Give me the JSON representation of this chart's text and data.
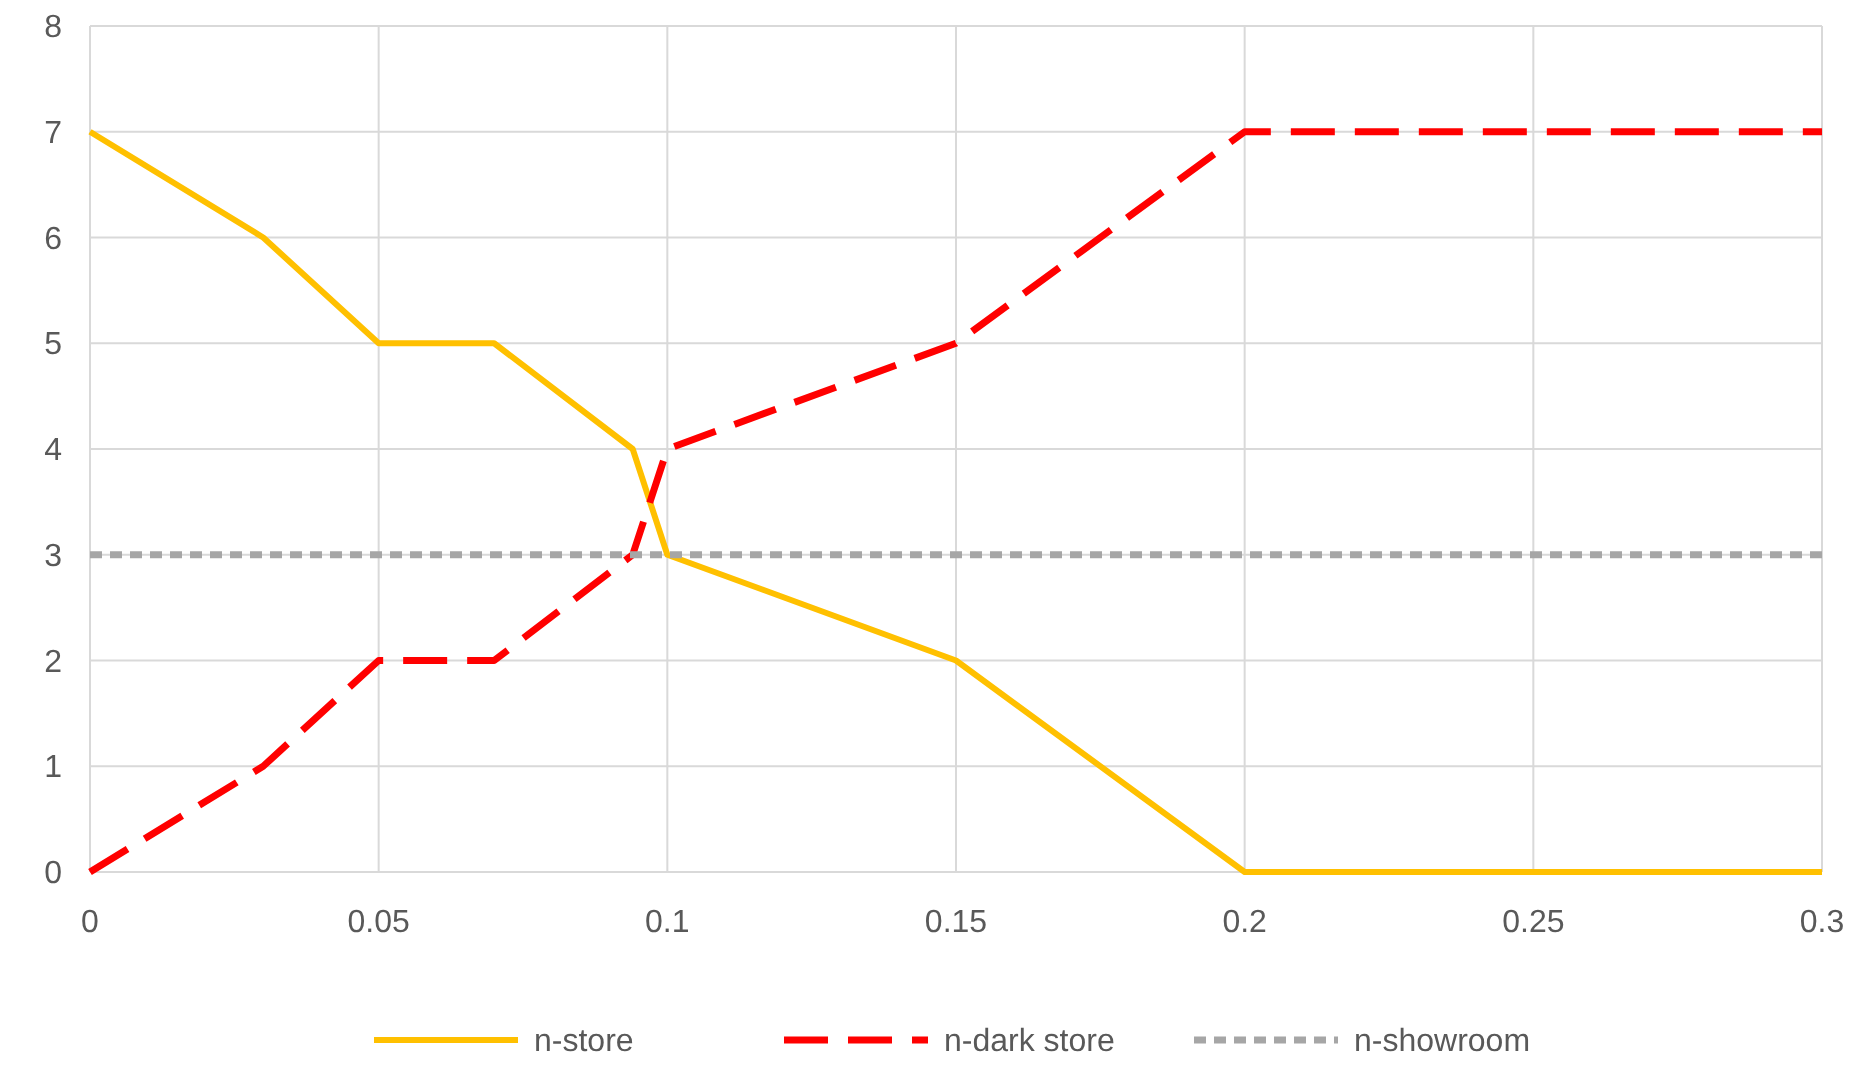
{
  "chart_data": {
    "type": "line",
    "x": [
      0,
      0.03,
      0.05,
      0.07,
      0.094,
      0.1,
      0.15,
      0.2,
      0.3
    ],
    "series": [
      {
        "name": "n-store",
        "color": "#ffc000",
        "line_style": "solid",
        "values": [
          7,
          6,
          5,
          5,
          4,
          3,
          2,
          0,
          0
        ]
      },
      {
        "name": "n-dark store",
        "color": "#ff0000",
        "line_style": "dashed",
        "values": [
          0,
          1,
          2,
          2,
          3,
          4,
          5,
          7,
          7
        ]
      },
      {
        "name": "n-showroom",
        "color": "#a6a6a6",
        "line_style": "dotted",
        "x": [
          0,
          0.3
        ],
        "values": [
          3,
          3
        ]
      }
    ],
    "xlim": [
      0,
      0.3
    ],
    "xticks": [
      0,
      0.05,
      0.1,
      0.15,
      0.2,
      0.25,
      0.3
    ],
    "ylim": [
      0,
      8
    ],
    "yticks": [
      0,
      1,
      2,
      3,
      4,
      5,
      6,
      7,
      8
    ],
    "grid": true,
    "legend": "bottom"
  }
}
